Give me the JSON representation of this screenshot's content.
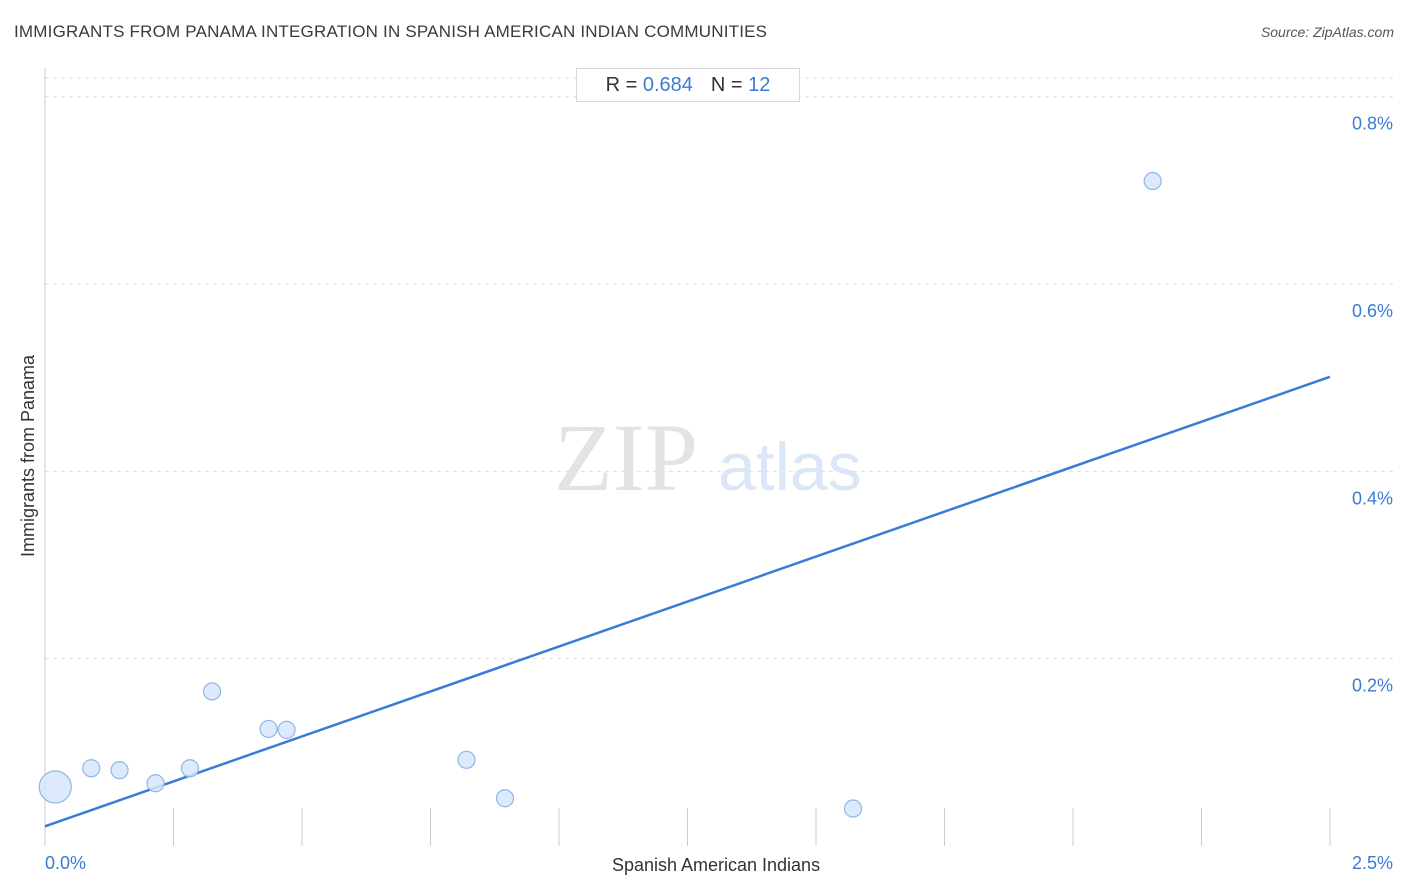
{
  "header": {
    "title": "IMMIGRANTS FROM PANAMA INTEGRATION IN SPANISH AMERICAN INDIAN COMMUNITIES",
    "source": "Source: ZipAtlas.com"
  },
  "stats": {
    "r_label": "R =",
    "r_value": "0.684",
    "n_label": "N =",
    "n_value": "12"
  },
  "watermark": {
    "zip": "ZIP",
    "atlas": "atlas"
  },
  "colors": {
    "accent": "#3a7bd5",
    "point_fill": "#d6e6fa",
    "point_stroke": "#8fb6e8",
    "grid": "#dddddd"
  },
  "chart_data": {
    "type": "scatter",
    "title": "IMMIGRANTS FROM PANAMA INTEGRATION IN SPANISH AMERICAN INDIAN COMMUNITIES",
    "xlabel": "Spanish American Indians",
    "ylabel": "Immigrants from Panama",
    "xlim": [
      0,
      2.5
    ],
    "ylim": [
      0,
      0.82
    ],
    "x_tick_labels": [
      {
        "value": 0,
        "label": "0.0%"
      },
      {
        "value": 2.5,
        "label": "2.5%"
      }
    ],
    "y_ticks": [
      {
        "value": 0.2,
        "label": "0.2%"
      },
      {
        "value": 0.4,
        "label": "0.4%"
      },
      {
        "value": 0.6,
        "label": "0.6%"
      },
      {
        "value": 0.8,
        "label": "0.8%"
      }
    ],
    "x_minor_ticks": [
      0.25,
      0.5,
      0.75,
      1.0,
      1.25,
      1.5,
      1.75,
      2.0,
      2.25,
      2.5
    ],
    "points": [
      {
        "x": 0.02,
        "y": 0.063,
        "size": "large"
      },
      {
        "x": 0.09,
        "y": 0.083,
        "size": "small"
      },
      {
        "x": 0.145,
        "y": 0.081,
        "size": "small"
      },
      {
        "x": 0.215,
        "y": 0.067,
        "size": "small"
      },
      {
        "x": 0.282,
        "y": 0.083,
        "size": "small"
      },
      {
        "x": 0.325,
        "y": 0.165,
        "size": "small"
      },
      {
        "x": 0.435,
        "y": 0.125,
        "size": "small"
      },
      {
        "x": 0.47,
        "y": 0.124,
        "size": "small"
      },
      {
        "x": 0.82,
        "y": 0.092,
        "size": "small"
      },
      {
        "x": 0.895,
        "y": 0.051,
        "size": "small"
      },
      {
        "x": 1.572,
        "y": 0.04,
        "size": "small"
      },
      {
        "x": 2.155,
        "y": 0.71,
        "size": "small"
      }
    ],
    "trendline": {
      "x": [
        0,
        2.5
      ],
      "y": [
        0.021,
        0.501
      ]
    },
    "grid": true
  }
}
